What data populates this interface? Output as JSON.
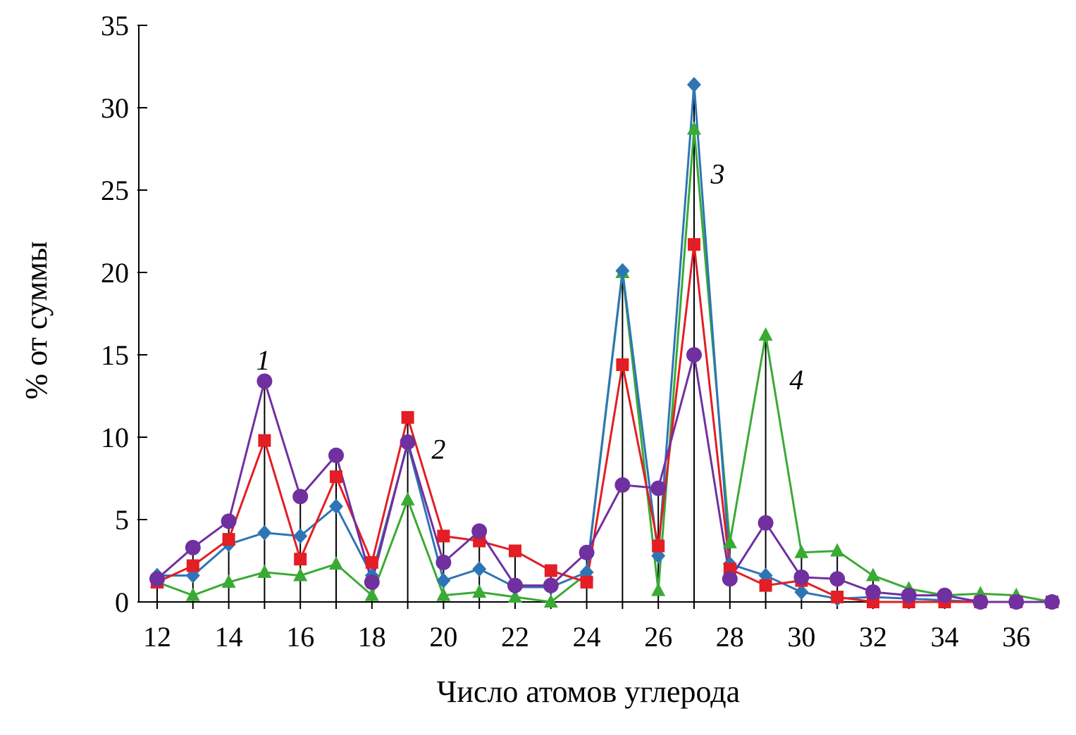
{
  "chart_data": {
    "type": "line",
    "xlabel": "Число атомов углерода",
    "ylabel": "% от суммы",
    "xlim": [
      12,
      37
    ],
    "ylim": [
      0,
      35
    ],
    "xticks": [
      "12",
      "14",
      "16",
      "18",
      "20",
      "22",
      "24",
      "26",
      "28",
      "30",
      "32",
      "34",
      "36"
    ],
    "yticks": [
      "0",
      "5",
      "10",
      "15",
      "20",
      "25",
      "30",
      "35"
    ],
    "grid": false,
    "x": [
      12,
      13,
      14,
      15,
      16,
      17,
      18,
      19,
      20,
      21,
      22,
      23,
      24,
      25,
      26,
      27,
      28,
      29,
      30,
      31,
      32,
      33,
      34,
      35,
      36,
      37
    ],
    "series": [
      {
        "label": "1",
        "color": "#7030a0",
        "marker": "circle",
        "values": [
          1.4,
          3.3,
          4.9,
          13.4,
          6.4,
          8.9,
          1.2,
          9.7,
          2.4,
          4.3,
          1.0,
          1.0,
          3.0,
          7.1,
          6.9,
          15.0,
          1.4,
          4.8,
          1.5,
          1.4,
          0.6,
          0.4,
          0.4,
          0.0,
          0.0,
          0.0
        ]
      },
      {
        "label": "2",
        "color": "#e31e24",
        "marker": "square",
        "values": [
          1.2,
          2.2,
          3.8,
          9.8,
          2.6,
          7.6,
          2.4,
          11.2,
          4.0,
          3.7,
          3.1,
          1.9,
          1.2,
          14.4,
          3.4,
          21.7,
          2.0,
          1.0,
          1.3,
          0.3,
          0.0,
          0.0,
          0.0,
          0.0,
          0.0,
          0.0
        ]
      },
      {
        "label": "3",
        "color": "#2e75b6",
        "marker": "diamond",
        "values": [
          1.6,
          1.6,
          3.5,
          4.2,
          4.0,
          5.8,
          1.6,
          9.6,
          1.3,
          2.0,
          0.9,
          0.9,
          1.8,
          20.1,
          2.8,
          31.4,
          2.3,
          1.6,
          0.6,
          0.2,
          0.3,
          0.2,
          0.1,
          0.0,
          0.0,
          0.0
        ]
      },
      {
        "label": "4",
        "color": "#3aaa35",
        "marker": "triangle",
        "values": [
          1.2,
          0.4,
          1.2,
          1.8,
          1.6,
          2.3,
          0.4,
          6.2,
          0.4,
          0.6,
          0.3,
          0.0,
          1.7,
          20.0,
          0.7,
          28.7,
          3.6,
          16.2,
          3.0,
          3.1,
          1.6,
          0.8,
          0.4,
          0.5,
          0.4,
          0.0
        ]
      }
    ],
    "series_annotations": [
      {
        "text": "1",
        "x": 15,
        "y": 14.7
      },
      {
        "text": "2",
        "x": 19.9,
        "y": 9.3
      },
      {
        "text": "3",
        "x": 27.7,
        "y": 26.0
      },
      {
        "text": "4",
        "x": 29.9,
        "y": 13.5
      }
    ]
  }
}
